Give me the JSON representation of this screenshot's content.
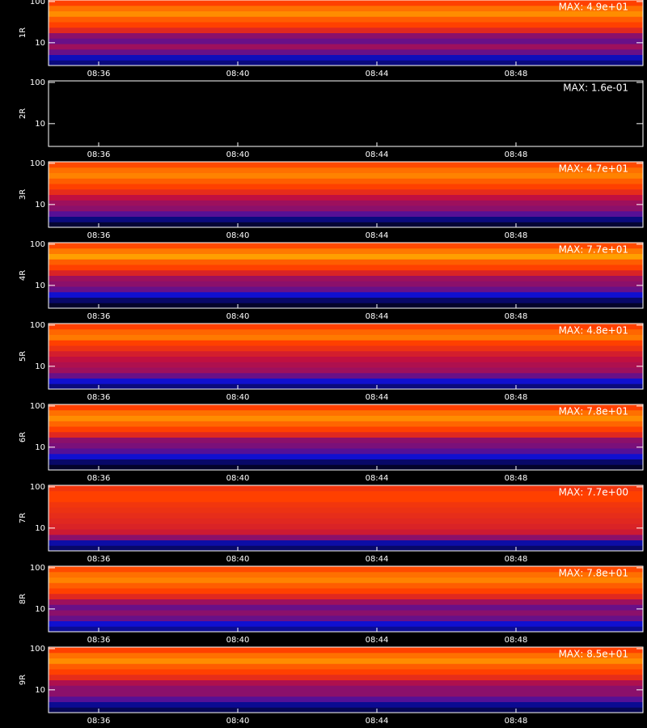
{
  "chart_data": {
    "type": "spectrogram",
    "ylim": [
      2.8,
      109
    ],
    "yticks": [
      10,
      100
    ],
    "log_y": true,
    "xticks": [
      "08:36",
      "08:40",
      "08:44",
      "08:48"
    ],
    "colormap": [
      "#000000",
      "#1010d0",
      "#c01040",
      "#ff4000",
      "#ffa000",
      "#ffff80"
    ],
    "panels": [
      {
        "label": "1R",
        "max_label": "MAX: 4.9e+01",
        "intensity": [
          0.12,
          0.18,
          0.3,
          0.36,
          0.3,
          0.34,
          0.5,
          0.6,
          0.66,
          0.76,
          0.7,
          0.6
        ]
      },
      {
        "label": "2R",
        "max_label": "MAX: 1.6e-01",
        "intensity": [
          0,
          0,
          0,
          0,
          0,
          0,
          0,
          0,
          0,
          0,
          0,
          0
        ]
      },
      {
        "label": "3R",
        "max_label": "MAX: 4.7e+01",
        "intensity": [
          0.05,
          0.12,
          0.28,
          0.34,
          0.36,
          0.4,
          0.52,
          0.6,
          0.66,
          0.74,
          0.7,
          0.62
        ]
      },
      {
        "label": "4R",
        "max_label": "MAX: 7.7e+01",
        "intensity": [
          0.04,
          0.1,
          0.2,
          0.3,
          0.34,
          0.36,
          0.48,
          0.6,
          0.66,
          0.8,
          0.72,
          0.62
        ]
      },
      {
        "label": "5R",
        "max_label": "MAX: 4.8e+01",
        "intensity": [
          0.12,
          0.2,
          0.3,
          0.36,
          0.38,
          0.4,
          0.46,
          0.54,
          0.6,
          0.72,
          0.68,
          0.6
        ]
      },
      {
        "label": "6R",
        "max_label": "MAX: 7.8e+01",
        "intensity": [
          0.04,
          0.1,
          0.2,
          0.28,
          0.32,
          0.34,
          0.5,
          0.6,
          0.68,
          0.76,
          0.7,
          0.6
        ]
      },
      {
        "label": "7R",
        "max_label": "MAX: 7.7e+00",
        "intensity": [
          0.1,
          0.16,
          0.34,
          0.44,
          0.48,
          0.5,
          0.52,
          0.54,
          0.56,
          0.6,
          0.6,
          0.56
        ]
      },
      {
        "label": "8R",
        "max_label": "MAX: 7.8e+01",
        "intensity": [
          0.14,
          0.2,
          0.3,
          0.34,
          0.3,
          0.36,
          0.5,
          0.6,
          0.66,
          0.74,
          0.7,
          0.62
        ]
      },
      {
        "label": "9R",
        "max_label": "MAX: 8.5e+01",
        "intensity": [
          0.08,
          0.14,
          0.28,
          0.34,
          0.34,
          0.38,
          0.52,
          0.6,
          0.66,
          0.76,
          0.7,
          0.6
        ]
      }
    ]
  }
}
